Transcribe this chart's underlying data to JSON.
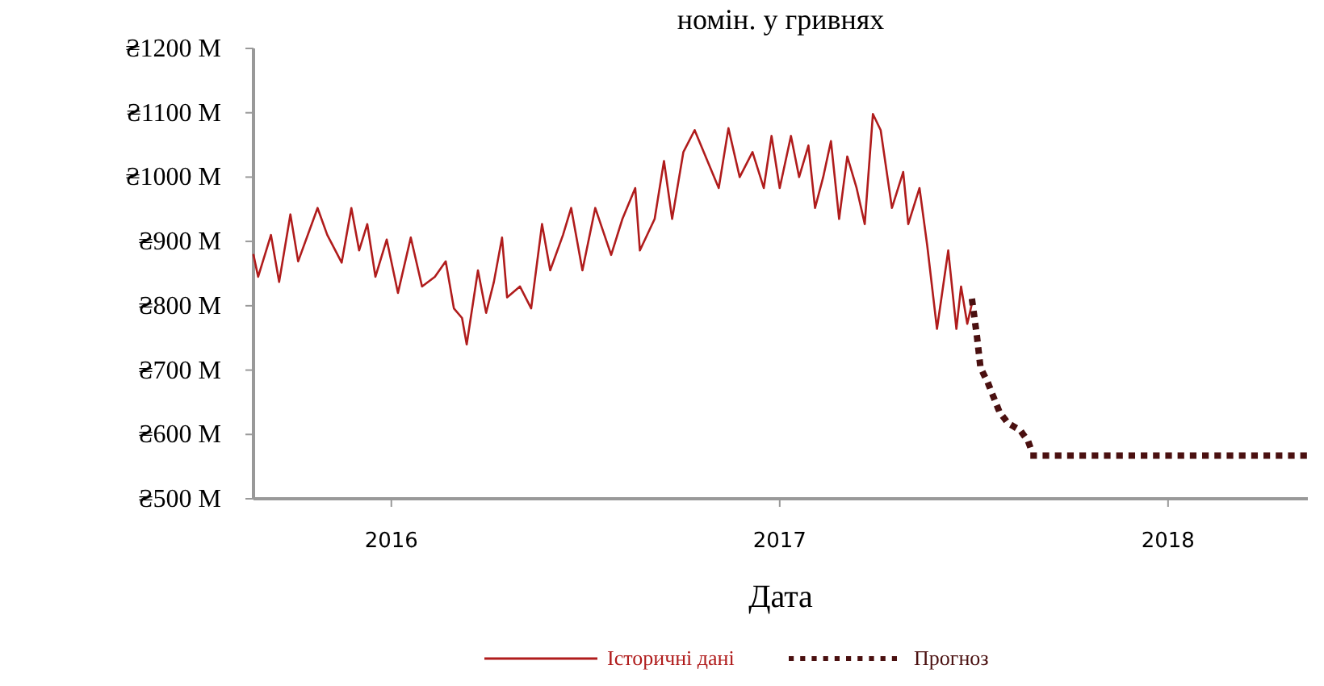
{
  "chart_data": {
    "type": "line",
    "title": "номін. у гривнях",
    "xlabel": "Дата",
    "xlim": [
      2015.645,
      2018.36
    ],
    "xticks": [
      2016,
      2017,
      2018
    ],
    "ylim": [
      500,
      1200
    ],
    "yticks": [
      {
        "value": 500,
        "label": "₴500 M"
      },
      {
        "value": 600,
        "label": "₴600 M"
      },
      {
        "value": 700,
        "label": "₴700 M"
      },
      {
        "value": 800,
        "label": "₴800 M"
      },
      {
        "value": 900,
        "label": "₴900 M"
      },
      {
        "value": 1000,
        "label": "₴1000 M"
      },
      {
        "value": 1100,
        "label": "₴1100 M"
      },
      {
        "value": 1200,
        "label": "₴1200 M"
      }
    ],
    "grid": false,
    "legend": "bottom",
    "series": [
      {
        "name": "Історичні дані",
        "color": "#b01c1c",
        "line_style": "solid",
        "x": [
          2015.645,
          2015.657,
          2015.69,
          2015.711,
          2015.74,
          2015.76,
          2015.81,
          2015.835,
          2015.872,
          2015.897,
          2015.917,
          2015.938,
          2015.959,
          2015.988,
          2016.017,
          2016.05,
          2016.079,
          2016.112,
          2016.14,
          2016.161,
          2016.182,
          2016.194,
          2016.223,
          2016.244,
          2016.264,
          2016.285,
          2016.298,
          2016.331,
          2016.36,
          2016.388,
          2016.409,
          2016.442,
          2016.463,
          2016.492,
          2016.525,
          2016.566,
          2016.595,
          2016.628,
          2016.64,
          2016.678,
          2016.702,
          2016.723,
          2016.752,
          2016.781,
          2016.814,
          2016.843,
          2016.868,
          2016.897,
          2016.93,
          2016.959,
          2016.979,
          2017.0,
          2017.029,
          2017.05,
          2017.074,
          2017.091,
          2017.112,
          2017.132,
          2017.153,
          2017.174,
          2017.198,
          2017.219,
          2017.24,
          2017.26,
          2017.289,
          2017.318,
          2017.331,
          2017.36,
          2017.38,
          2017.405,
          2017.434,
          2017.455,
          2017.467,
          2017.483,
          2017.496
        ],
        "values": [
          879,
          845,
          910,
          837,
          942,
          869,
          952,
          910,
          867,
          952,
          886,
          927,
          845,
          903,
          820,
          906,
          830,
          845,
          869,
          796,
          781,
          740,
          855,
          789,
          837,
          906,
          813,
          830,
          796,
          927,
          855,
          910,
          952,
          855,
          952,
          879,
          935,
          983,
          886,
          935,
          1025,
          935,
          1039,
          1073,
          1025,
          983,
          1076,
          1000,
          1039,
          983,
          1064,
          983,
          1064,
          1000,
          1049,
          952,
          1000,
          1056,
          935,
          1032,
          983,
          927,
          1098,
          1073,
          952,
          1008,
          927,
          983,
          893,
          764,
          886,
          764,
          830,
          772,
          806
        ]
      },
      {
        "name": "Прогноз",
        "color": "#4a1010",
        "line_style": "dotted",
        "x": [
          2017.496,
          2017.508,
          2017.517,
          2017.537,
          2017.55,
          2017.566,
          2017.587,
          2017.62,
          2017.64,
          2017.653,
          2018.35
        ],
        "values": [
          806,
          752,
          704,
          679,
          659,
          635,
          618,
          606,
          589,
          567,
          567
        ]
      }
    ]
  }
}
